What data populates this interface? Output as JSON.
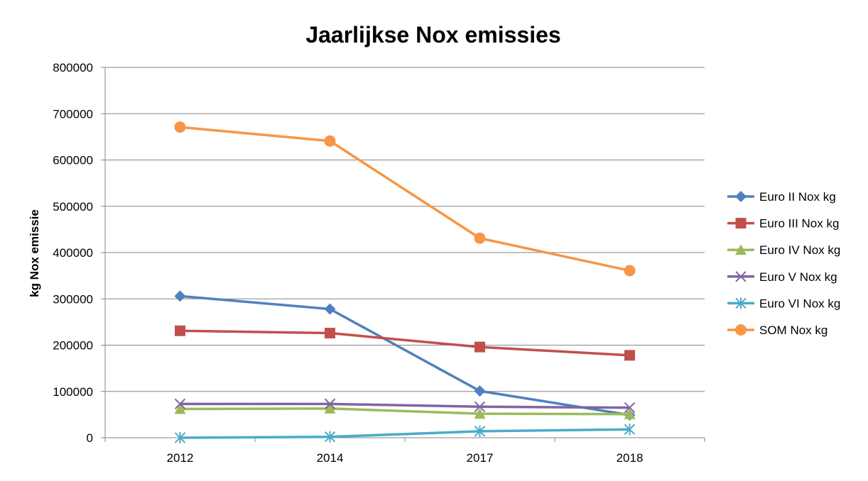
{
  "chart_data": {
    "type": "line",
    "title": "Jaarlijkse Nox emissies",
    "xlabel": "",
    "ylabel": "kg Nox emissie",
    "categories": [
      "2012",
      "2014",
      "2017",
      "2018"
    ],
    "ylim": [
      0,
      800000
    ],
    "yticks": [
      0,
      100000,
      200000,
      300000,
      400000,
      500000,
      600000,
      700000,
      800000
    ],
    "ytick_labels": [
      "0",
      "100000",
      "200000",
      "300000",
      "400000",
      "500000",
      "600000",
      "700000",
      "800000"
    ],
    "grid": true,
    "legend_position": "right",
    "series": [
      {
        "name": "Euro II Nox kg",
        "values": [
          306000,
          278000,
          101000,
          49000
        ],
        "color": "#4f81bd",
        "marker": "diamond"
      },
      {
        "name": "Euro III Nox kg",
        "values": [
          231000,
          226000,
          196000,
          178000
        ],
        "color": "#c0504d",
        "marker": "square"
      },
      {
        "name": "Euro IV Nox kg",
        "values": [
          62000,
          63000,
          52000,
          51000
        ],
        "color": "#9bbb59",
        "marker": "triangle"
      },
      {
        "name": "Euro V Nox kg",
        "values": [
          73000,
          73000,
          67000,
          65000
        ],
        "color": "#8064a2",
        "marker": "x"
      },
      {
        "name": "Euro VI Nox kg",
        "values": [
          0,
          2000,
          14000,
          18000
        ],
        "color": "#4bacc6",
        "marker": "star"
      },
      {
        "name": "SOM Nox kg",
        "values": [
          671000,
          641000,
          431000,
          361000
        ],
        "color": "#f79646",
        "marker": "circle"
      }
    ]
  }
}
